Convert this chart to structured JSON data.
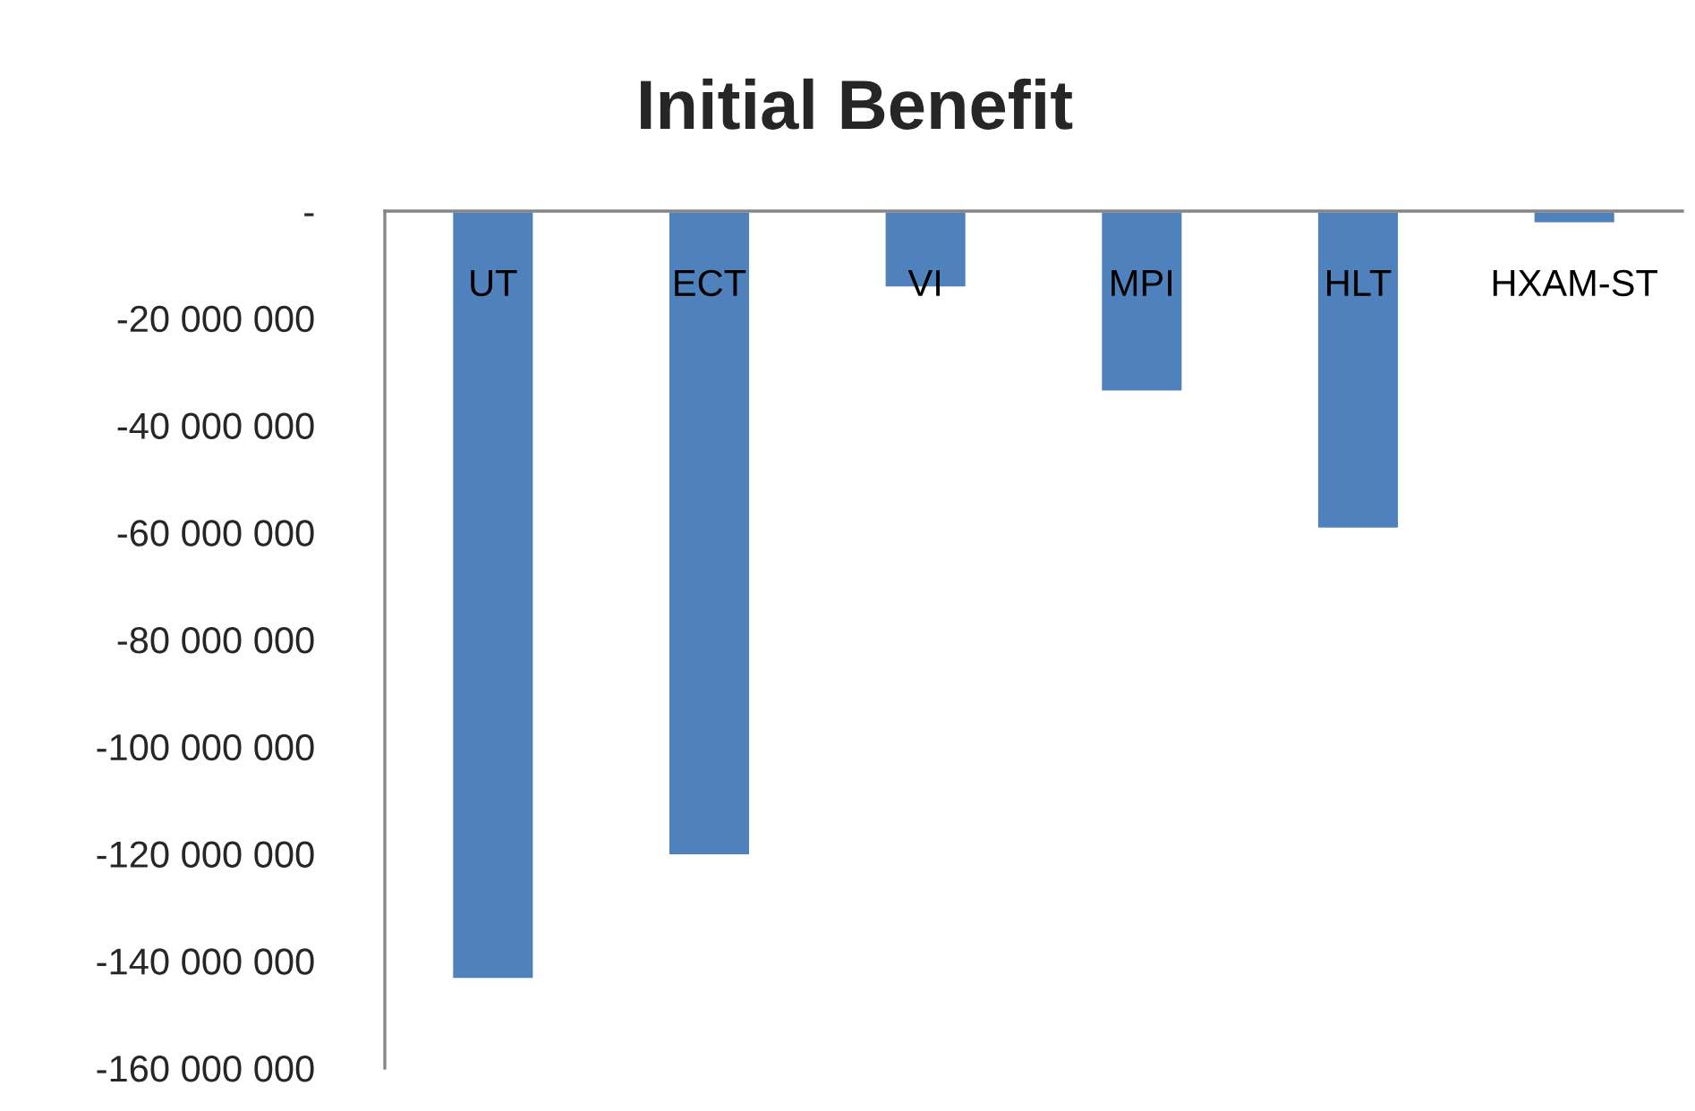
{
  "chart_data": {
    "type": "bar",
    "title": "Initial Benefit",
    "categories": [
      "UT",
      "ECT",
      "VI",
      "MPI",
      "HLT",
      "HXAM-ST"
    ],
    "values": [
      -143400000,
      -120300000,
      -14300000,
      -33700000,
      -59300000,
      -2300000
    ],
    "color": "#4f81bd",
    "ylim": [
      -160000000,
      0
    ],
    "yticks": [
      {
        "value": 0,
        "label": "-"
      },
      {
        "value": -20000000,
        "label": "-20 000 000"
      },
      {
        "value": -40000000,
        "label": "-40 000 000"
      },
      {
        "value": -60000000,
        "label": "-60 000 000"
      },
      {
        "value": -80000000,
        "label": "-80 000 000"
      },
      {
        "value": -100000000,
        "label": "-100 000 000"
      },
      {
        "value": -120000000,
        "label": "-120 000 000"
      },
      {
        "value": -140000000,
        "label": "-140 000 000"
      },
      {
        "value": -160000000,
        "label": "-160 000 000"
      }
    ],
    "grid": false
  }
}
